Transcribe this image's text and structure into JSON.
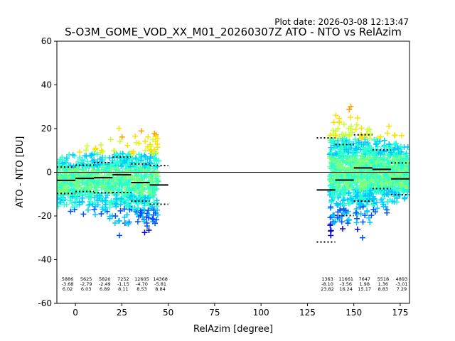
{
  "chart_data": {
    "type": "scatter",
    "plot_date": "Plot date: 2026-03-08 12:13:47",
    "title": "S-O3M_GOME_VOD_XX_M01_20260307Z ATO - NTO vs RelAzim",
    "xlabel": "RelAzim [degree]",
    "ylabel": "ATO - NTO [DU]",
    "xlim": [
      -10,
      180
    ],
    "ylim": [
      -60,
      60
    ],
    "xticks": [
      0,
      25,
      50,
      75,
      100,
      125,
      150,
      175
    ],
    "yticks": [
      -60,
      -40,
      -20,
      0,
      20,
      40,
      60
    ],
    "grid": false,
    "zero_line": 0,
    "point_colors": [
      "#0000cc",
      "#0050ff",
      "#00c8ff",
      "#28ffd0",
      "#7cff7c",
      "#c8ff30",
      "#ffe000",
      "#ffa000"
    ],
    "clusters": [
      {
        "x_range": [
          -10,
          45
        ],
        "y_center": -4,
        "spread": 18
      },
      {
        "x_range": [
          137,
          180
        ],
        "y_center": 0,
        "spread": 22
      }
    ],
    "bins": [
      {
        "x_range": [
          -10,
          0
        ],
        "count": "5886",
        "mean": -3.68,
        "mean_label": "-3.68",
        "std": 6.02,
        "std_label": "6.02"
      },
      {
        "x_range": [
          0,
          10
        ],
        "count": "5625",
        "mean": -2.79,
        "mean_label": "-2.79",
        "std": 6.03,
        "std_label": "6.03"
      },
      {
        "x_range": [
          10,
          20
        ],
        "count": "5820",
        "mean": -2.49,
        "mean_label": "-2.49",
        "std": 6.89,
        "std_label": "6.89"
      },
      {
        "x_range": [
          20,
          30
        ],
        "count": "7252",
        "mean": -1.15,
        "mean_label": "-1.15",
        "std": 8.11,
        "std_label": "8.11"
      },
      {
        "x_range": [
          30,
          40
        ],
        "count": "12605",
        "mean": -4.7,
        "mean_label": "-4.70",
        "std": 8.53,
        "std_label": "8.53"
      },
      {
        "x_range": [
          40,
          50
        ],
        "count": "14368",
        "mean": -5.81,
        "mean_label": "-5.81",
        "std": 8.84,
        "std_label": "8.84"
      },
      {
        "x_range": [
          130,
          140
        ],
        "count": "1363",
        "mean": -8.1,
        "mean_label": "-8.10",
        "std": 23.82,
        "std_label": "23.82"
      },
      {
        "x_range": [
          140,
          150
        ],
        "count": "11661",
        "mean": -3.56,
        "mean_label": "-3.56",
        "std": 16.24,
        "std_label": "16.24"
      },
      {
        "x_range": [
          150,
          160
        ],
        "count": "7647",
        "mean": 1.98,
        "mean_label": "1.98",
        "std": 15.17,
        "std_label": "15.17"
      },
      {
        "x_range": [
          160,
          170
        ],
        "count": "5518",
        "mean": 1.36,
        "mean_label": "1.36",
        "std": 8.83,
        "std_label": "8.83"
      },
      {
        "x_range": [
          170,
          180
        ],
        "count": "4893",
        "mean": -3.01,
        "mean_label": "-3.01",
        "std": 7.29,
        "std_label": "7.29"
      }
    ]
  }
}
